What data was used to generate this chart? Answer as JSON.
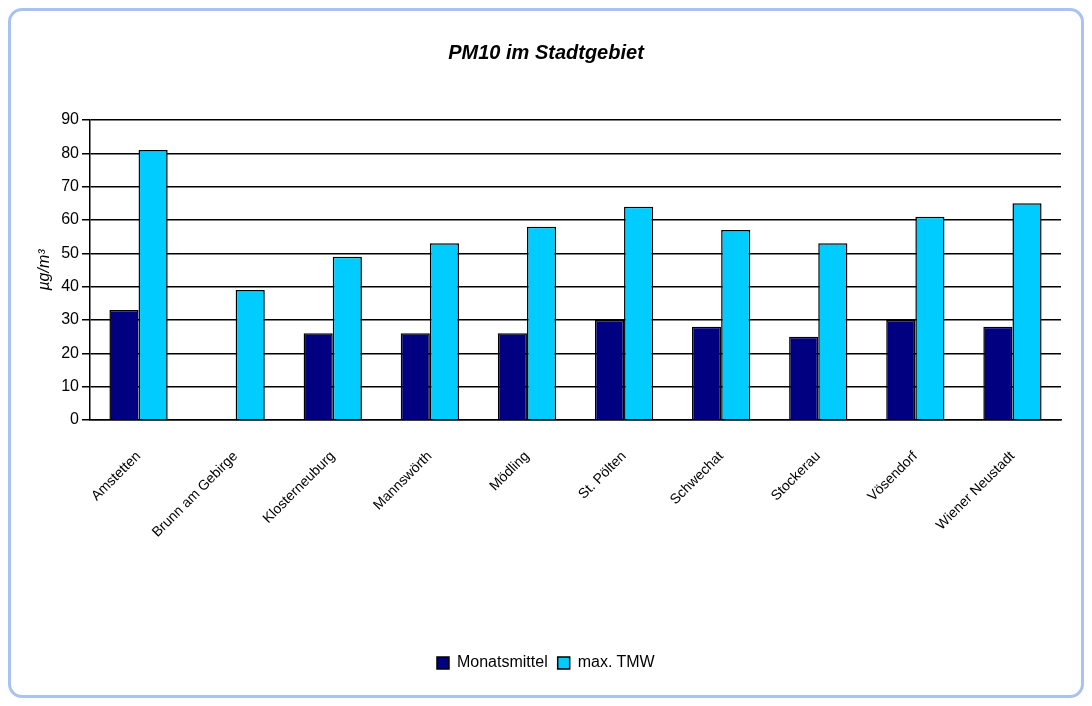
{
  "chart_data": {
    "type": "bar",
    "title": "PM10 im Stadtgebiet",
    "ylabel": "µg/m³",
    "categories": [
      "Amstetten",
      "Brunn am Gebirge",
      "Klosterneuburg",
      "Mannswörth",
      "Mödling",
      "St. Pölten",
      "Schwechat",
      "Stockerau",
      "Vösendorf",
      "Wiener Neustadt"
    ],
    "series": [
      {
        "name": "Monatsmittel",
        "color": "#000080",
        "values": [
          33,
          null,
          26,
          26,
          26,
          30,
          28,
          25,
          30,
          28
        ]
      },
      {
        "name": "max. TMW",
        "color": "#00ccff",
        "values": [
          81,
          39,
          49,
          53,
          58,
          64,
          57,
          53,
          61,
          65
        ]
      }
    ],
    "ylim": [
      0,
      90
    ],
    "yticks": [
      0,
      10,
      20,
      30,
      40,
      50,
      60,
      70,
      80,
      90
    ],
    "grid": "y",
    "legend": "bottom"
  }
}
